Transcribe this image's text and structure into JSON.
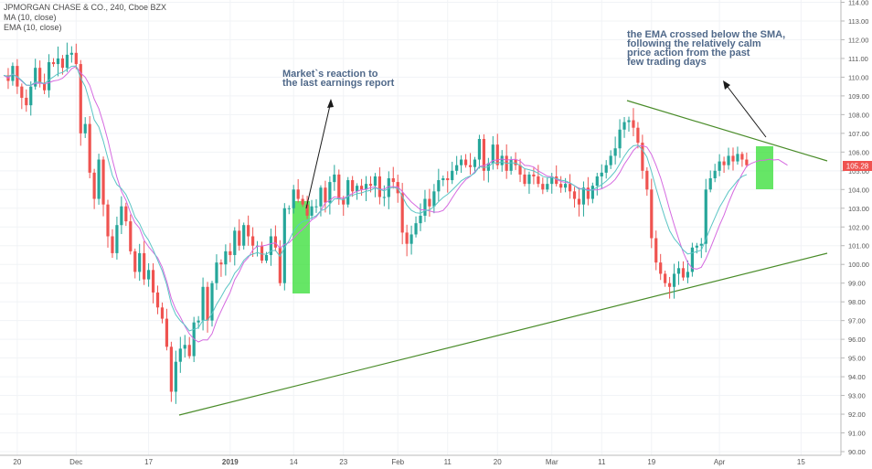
{
  "legend": {
    "title": "JPMORGAN CHASE & CO., 240, Cboe BZX",
    "ma": "MA (10, close)",
    "ema": "EMA (10, close)"
  },
  "annotations": {
    "earnings": "Market`s reaction to\nthe last earnings report",
    "ema_cross": "the EMA crossed below the SMA,\nfollowing the relatively calm\nprice action from the past\nfew trading days"
  },
  "colors": {
    "up": "#26a69a",
    "down": "#ef5350",
    "ma": "#d56ae0",
    "ema": "#5cc5c5",
    "trendline": "#4a8c2a",
    "highlight": "#33dd33",
    "price_label_bg": "#ef5350"
  },
  "chart_data": {
    "type": "candlestick",
    "symbol": "JPMORGAN CHASE & CO.",
    "interval": "240",
    "exchange": "Cboe BZX",
    "last_price": "105.28",
    "ylim": [
      90,
      114
    ],
    "y_ticks": [
      "90.00",
      "91.00",
      "92.00",
      "93.00",
      "94.00",
      "95.00",
      "96.00",
      "97.00",
      "98.00",
      "99.00",
      "100.00",
      "101.00",
      "102.00",
      "103.00",
      "104.00",
      "105.00",
      "106.00",
      "107.00",
      "108.00",
      "109.00",
      "110.00",
      "111.00",
      "112.00",
      "113.00",
      "114.00"
    ],
    "x_ticks": [
      {
        "label": "20",
        "bar": 3
      },
      {
        "label": "Dec",
        "bar": 16
      },
      {
        "label": "17",
        "bar": 32
      },
      {
        "label": "2019",
        "bar": 50
      },
      {
        "label": "14",
        "bar": 64
      },
      {
        "label": "23",
        "bar": 75
      },
      {
        "label": "Feb",
        "bar": 87
      },
      {
        "label": "11",
        "bar": 98
      },
      {
        "label": "20",
        "bar": 109
      },
      {
        "label": "Mar",
        "bar": 121
      },
      {
        "label": "11",
        "bar": 132
      },
      {
        "label": "19",
        "bar": 143
      },
      {
        "label": "Apr",
        "bar": 158
      },
      {
        "label": "15",
        "bar": 176
      }
    ],
    "bar_count": 185,
    "closes": [
      110.1,
      109.8,
      110.6,
      109.5,
      108.9,
      108.5,
      109.5,
      110.5,
      109.7,
      109.3,
      110.8,
      110.7,
      111.0,
      110.5,
      111.2,
      111.3,
      110.7,
      107.0,
      107.5,
      104.9,
      103.5,
      105.6,
      103.2,
      101.5,
      100.6,
      102.1,
      103.1,
      102.3,
      100.7,
      99.6,
      100.6,
      99.2,
      99.7,
      98.5,
      97.7,
      97.1,
      95.6,
      93.2,
      94.8,
      95.5,
      95.7,
      95.1,
      96.9,
      97.0,
      98.8,
      97.0,
      99.0,
      100.1,
      100.0,
      100.7,
      100.5,
      101.8,
      101.0,
      102.1,
      101.5,
      101.0,
      101.0,
      100.2,
      100.5,
      101.5,
      100.9,
      99.0,
      103.0,
      103.0,
      104.0,
      103.5,
      103.2,
      102.6,
      103.1,
      103.1,
      104.1,
      103.3,
      104.4,
      104.8,
      103.5,
      103.2,
      104.5,
      103.9,
      104.2,
      104.0,
      104.3,
      104.2,
      104.7,
      103.6,
      103.6,
      104.6,
      104.4,
      103.8,
      101.7,
      101.1,
      101.6,
      102.2,
      102.6,
      103.5,
      103.1,
      103.9,
      104.5,
      104.6,
      104.5,
      105.0,
      105.3,
      105.6,
      105.3,
      105.2,
      105.6,
      106.7,
      105.0,
      105.4,
      106.4,
      105.3,
      105.8,
      105.0,
      105.6,
      105.3,
      104.8,
      104.3,
      104.8,
      104.7,
      104.3,
      104.0,
      104.3,
      104.7,
      104.3,
      104.1,
      104.3,
      103.9,
      103.5,
      103.2,
      104.1,
      103.5,
      104.2,
      104.7,
      104.9,
      105.3,
      105.8,
      106.2,
      107.2,
      107.6,
      107.7,
      107.3,
      106.5,
      105.0,
      104.0,
      101.4,
      100.1,
      99.5,
      99.0,
      98.8,
      99.5,
      99.8,
      99.3,
      99.6,
      100.9,
      101.0,
      101.1,
      104.0,
      104.6,
      105.0,
      105.5,
      105.3,
      105.8,
      105.5,
      105.9,
      105.6,
      105.3
    ]
  }
}
